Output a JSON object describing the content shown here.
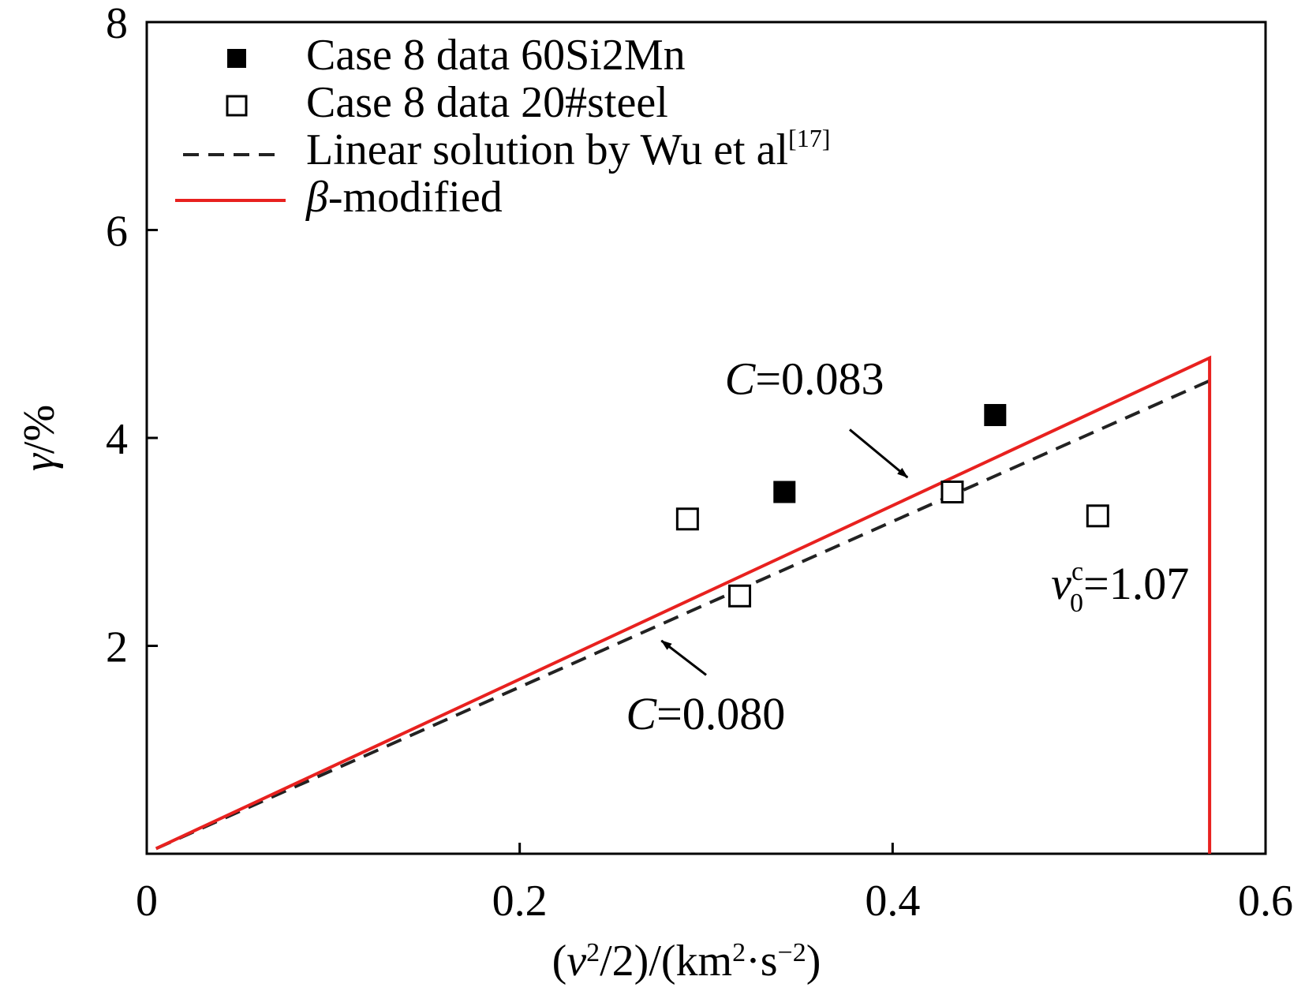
{
  "chart_data": {
    "type": "scatter",
    "xlim": [
      0,
      0.6
    ],
    "ylim": [
      0,
      8
    ],
    "x_ticks": [
      "0",
      "0.2",
      "0.4",
      "0.6"
    ],
    "y_ticks": [
      "2",
      "4",
      "6",
      "8"
    ],
    "xlabel": {
      "parts": [
        "(",
        "v",
        "2",
        "/2)/(km",
        "2",
        "·s",
        "−2",
        ")"
      ]
    },
    "ylabel": {
      "parts": [
        "γ",
        "/%"
      ]
    },
    "grid": false,
    "legend_position": "top-left",
    "series": [
      {
        "name": "Case 8 data 60Si2Mn",
        "kind": "filled-square",
        "color": "#000000",
        "points": [
          [
            0.342,
            3.48
          ],
          [
            0.455,
            4.22
          ]
        ]
      },
      {
        "name": "Case 8 data 20#steel",
        "kind": "open-square",
        "color": "#000000",
        "points": [
          [
            0.29,
            3.22
          ],
          [
            0.318,
            2.48
          ],
          [
            0.432,
            3.48
          ],
          [
            0.51,
            3.25
          ]
        ]
      },
      {
        "name_parts": [
          "Linear solution by Wu et al",
          "[17]"
        ],
        "kind": "dashed-line",
        "color": "#222222",
        "points": [
          [
            0.005,
            0.05
          ],
          [
            0.57,
            4.55
          ]
        ]
      },
      {
        "name_parts": [
          "β",
          "-modified"
        ],
        "kind": "solid-line",
        "color": "#e8211f",
        "points": [
          [
            0.005,
            0.05
          ],
          [
            0.57,
            4.77
          ],
          [
            0.57,
            0.0
          ]
        ]
      }
    ],
    "annotations": [
      {
        "parts": [
          "C",
          "=0.083"
        ],
        "at": [
          0.31,
          4.42
        ],
        "arrow_from": [
          0.377,
          4.08
        ],
        "arrow_to": [
          0.408,
          3.62
        ]
      },
      {
        "parts": [
          "C",
          "=0.080"
        ],
        "at": [
          0.257,
          1.2
        ],
        "arrow_from": [
          0.3,
          1.72
        ],
        "arrow_to": [
          0.276,
          2.05
        ]
      },
      {
        "parts": [
          "v",
          "c",
          "0",
          "=1.07"
        ],
        "at": [
          0.485,
          2.45
        ]
      }
    ]
  }
}
